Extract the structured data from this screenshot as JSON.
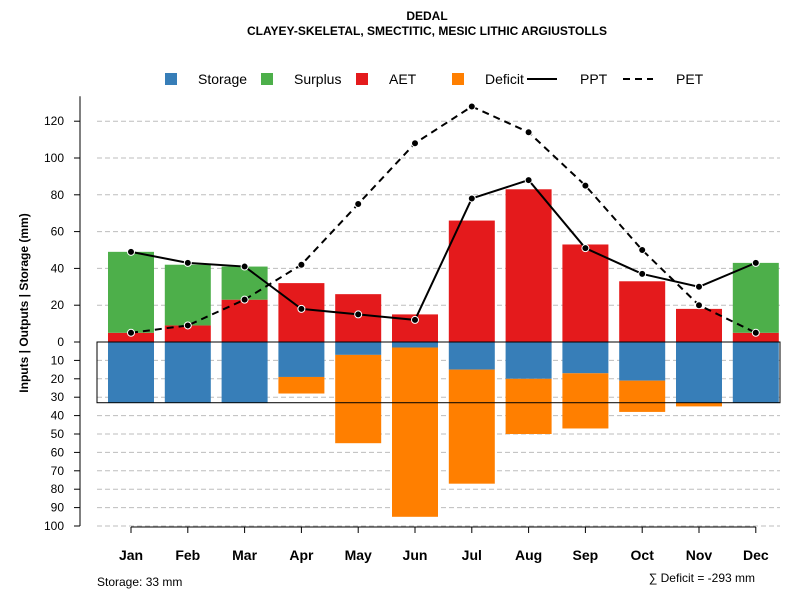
{
  "chart_data": {
    "type": "bar",
    "title": "DEDAL",
    "subtitle": "CLAYEY-SKELETAL, SMECTITIC, MESIC LITHIC ARGIUSTOLLS",
    "ylabel": "Inputs | Outputs | Storage    (mm)",
    "categories": [
      "Jan",
      "Feb",
      "Mar",
      "Apr",
      "May",
      "Jun",
      "Jul",
      "Aug",
      "Sep",
      "Oct",
      "Nov",
      "Dec"
    ],
    "upper_ylim": [
      0,
      130
    ],
    "upper_ticks": [
      "0",
      "20",
      "40",
      "60",
      "80",
      "100",
      "120"
    ],
    "lower_ylim": [
      0,
      100
    ],
    "lower_ticks": [
      "0",
      "10",
      "20",
      "30",
      "40",
      "50",
      "60",
      "70",
      "80",
      "90",
      "100"
    ],
    "colors": {
      "storage": "#377EB8",
      "surplus": "#4DAF4A",
      "aet": "#E41A1C",
      "deficit": "#FF7F00"
    },
    "legend": [
      {
        "key": "storage",
        "label": "Storage",
        "kind": "box"
      },
      {
        "key": "surplus",
        "label": "Surplus",
        "kind": "box"
      },
      {
        "key": "aet",
        "label": "AET",
        "kind": "box"
      },
      {
        "key": "deficit",
        "label": "Deficit",
        "kind": "box"
      },
      {
        "key": "ppt",
        "label": "PPT",
        "kind": "solid"
      },
      {
        "key": "pet",
        "label": "PET",
        "kind": "dashed"
      }
    ],
    "series": [
      {
        "name": "AET",
        "values": [
          5,
          9,
          23,
          32,
          26,
          15,
          66,
          83,
          53,
          33,
          18,
          5
        ]
      },
      {
        "name": "Surplus",
        "values": [
          44,
          33,
          18,
          0,
          0,
          0,
          0,
          0,
          0,
          0,
          0,
          38
        ]
      },
      {
        "name": "Storage",
        "values": [
          33,
          33,
          33,
          19,
          7,
          3,
          15,
          20,
          17,
          21,
          33,
          33
        ]
      },
      {
        "name": "Deficit",
        "values": [
          0,
          0,
          0,
          9,
          48,
          92,
          62,
          30,
          30,
          17,
          2,
          0
        ]
      },
      {
        "name": "PPT",
        "values": [
          49,
          43,
          41,
          18,
          15,
          12,
          78,
          88,
          51,
          37,
          30,
          43
        ]
      },
      {
        "name": "PET",
        "values": [
          5,
          9,
          23,
          42,
          75,
          108,
          128,
          114,
          85,
          50,
          20,
          5
        ]
      }
    ],
    "storage_note": "Storage: 33 mm",
    "deficit_note": "∑ Deficit = -293 mm"
  }
}
